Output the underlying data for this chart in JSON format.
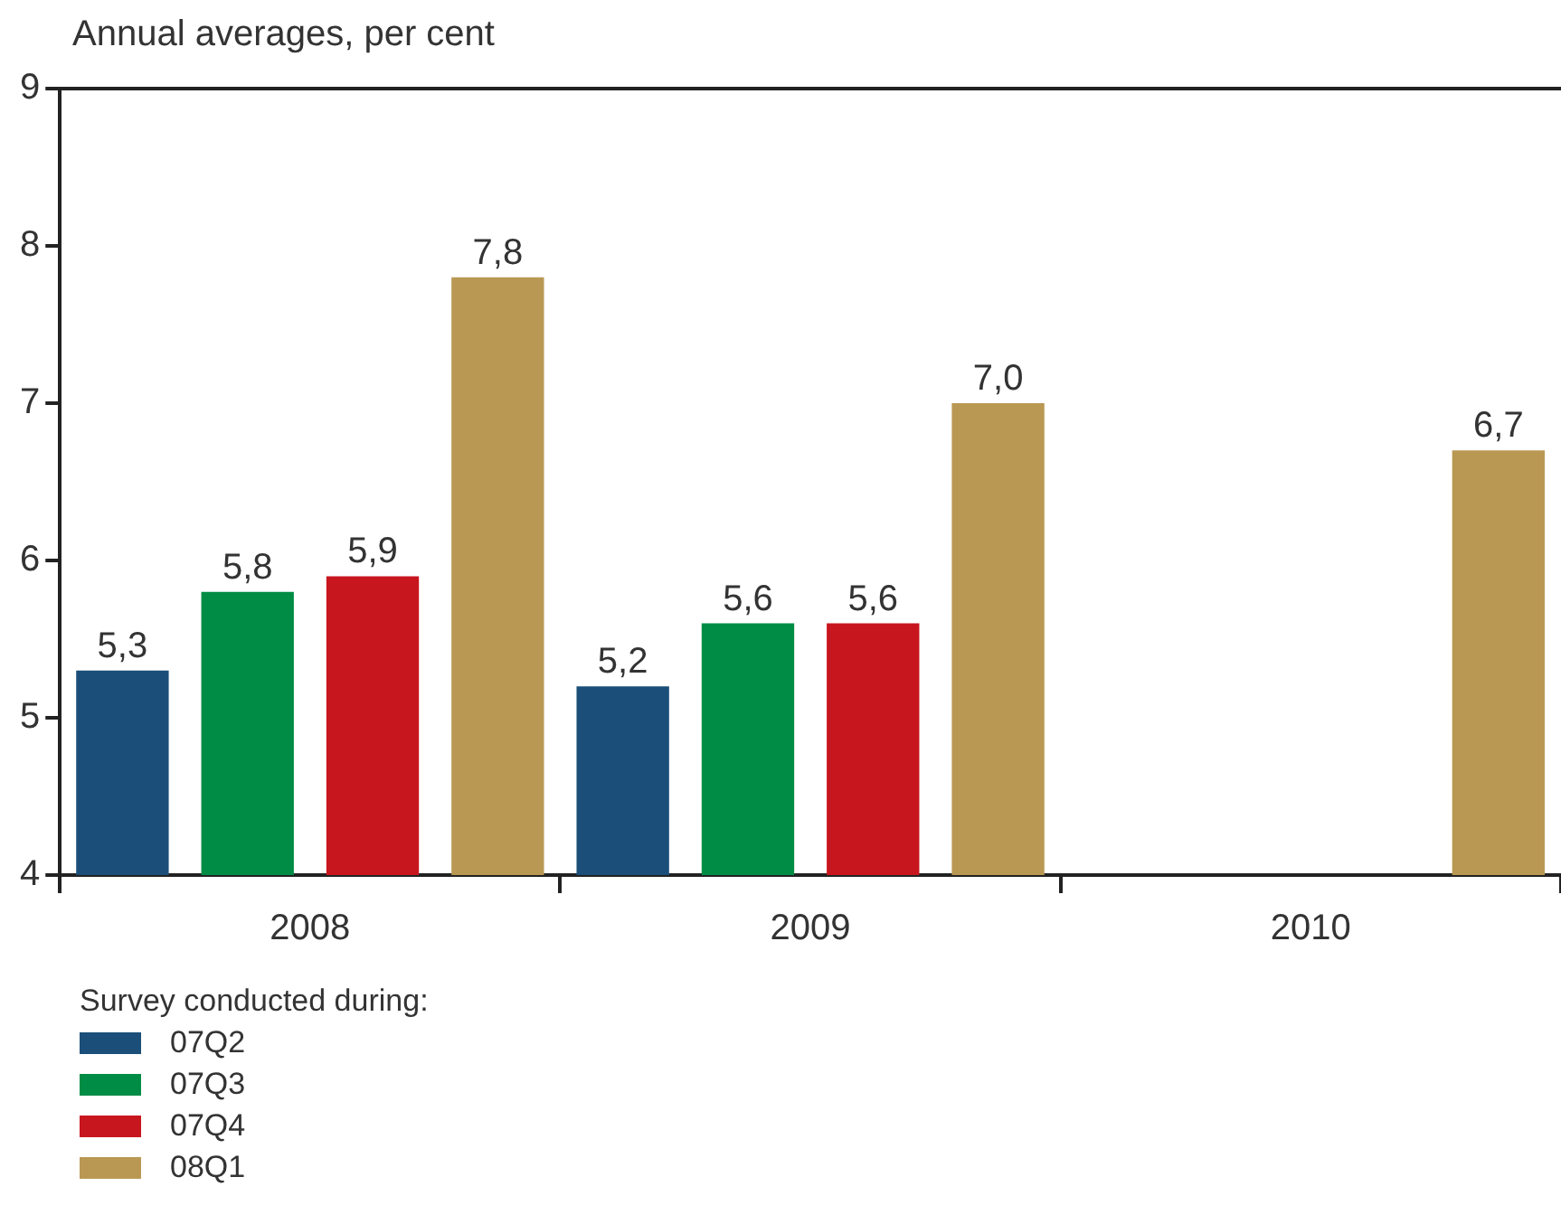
{
  "chart_data": {
    "type": "bar",
    "ylabel": "Annual averages, per cent",
    "categories": [
      "2008",
      "2009",
      "2010"
    ],
    "series": [
      {
        "name": "07Q2",
        "color": "#1b4f79",
        "values": [
          5.3,
          5.2,
          null
        ],
        "value_labels": [
          "5,3",
          "5,2",
          null
        ]
      },
      {
        "name": "07Q3",
        "color": "#008c45",
        "values": [
          5.8,
          5.6,
          null
        ],
        "value_labels": [
          "5,8",
          "5,6",
          null
        ]
      },
      {
        "name": "07Q4",
        "color": "#c8161e",
        "values": [
          5.9,
          5.6,
          null
        ],
        "value_labels": [
          "5,9",
          "5,6",
          null
        ]
      },
      {
        "name": "08Q1",
        "color": "#b99853",
        "values": [
          7.8,
          7.0,
          6.7
        ],
        "value_labels": [
          "7,8",
          "7,0",
          "6,7"
        ]
      }
    ],
    "ylim": [
      4,
      9
    ],
    "yticks": [
      4,
      5,
      6,
      7,
      8,
      9
    ],
    "legend": "bottom",
    "legend_title": "Survey conducted during:"
  }
}
